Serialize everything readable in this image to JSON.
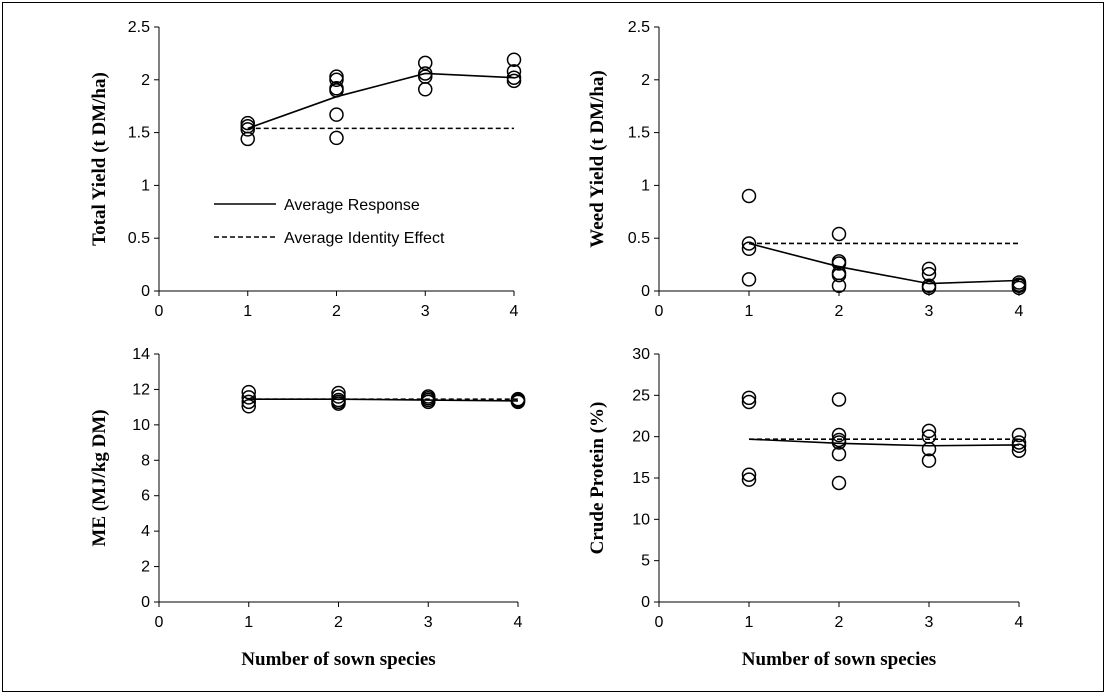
{
  "figure": {
    "legend": {
      "entries": [
        {
          "label": "Average Response",
          "style": "solid"
        },
        {
          "label": "Average Identity Effect",
          "style": "dashed"
        }
      ]
    }
  },
  "chart_data": [
    {
      "type": "scatter",
      "panel": "top-left",
      "ylabel": "Total Yield (t DM/ha)",
      "xlabel": "",
      "xlim": [
        0,
        4
      ],
      "ylim": [
        0,
        2.5
      ],
      "xticks": [
        "0",
        "1",
        "2",
        "3",
        "4"
      ],
      "yticks": [
        "0",
        "0.5",
        "1",
        "1.5",
        "2",
        "2.5"
      ],
      "points": [
        {
          "x": 1,
          "y": 1.44
        },
        {
          "x": 1,
          "y": 1.53
        },
        {
          "x": 1,
          "y": 1.56
        },
        {
          "x": 1,
          "y": 1.59
        },
        {
          "x": 2,
          "y": 1.45
        },
        {
          "x": 2,
          "y": 1.67
        },
        {
          "x": 2,
          "y": 1.9
        },
        {
          "x": 2,
          "y": 1.92
        },
        {
          "x": 2,
          "y": 2.0
        },
        {
          "x": 2,
          "y": 2.03
        },
        {
          "x": 3,
          "y": 1.91
        },
        {
          "x": 3,
          "y": 2.03
        },
        {
          "x": 3,
          "y": 2.06
        },
        {
          "x": 3,
          "y": 2.16
        },
        {
          "x": 4,
          "y": 1.99
        },
        {
          "x": 4,
          "y": 2.02
        },
        {
          "x": 4,
          "y": 2.08
        },
        {
          "x": 4,
          "y": 2.19
        }
      ],
      "series": [
        {
          "name": "Average Response",
          "style": "solid",
          "x": [
            1,
            2,
            3,
            4
          ],
          "y": [
            1.54,
            1.84,
            2.06,
            2.02
          ]
        },
        {
          "name": "Average Identity Effect",
          "style": "dashed",
          "x": [
            1,
            4
          ],
          "y": [
            1.54,
            1.54
          ]
        }
      ],
      "legend": "inside, mid-left"
    },
    {
      "type": "scatter",
      "panel": "top-right",
      "ylabel": "Weed Yield (t DM/ha)",
      "xlabel": "",
      "xlim": [
        0,
        4
      ],
      "ylim": [
        0,
        2.5
      ],
      "xticks": [
        "0",
        "1",
        "2",
        "3",
        "4"
      ],
      "yticks": [
        "0",
        "0.5",
        "1",
        "1.5",
        "2",
        "2.5"
      ],
      "points": [
        {
          "x": 1,
          "y": 0.11
        },
        {
          "x": 1,
          "y": 0.4
        },
        {
          "x": 1,
          "y": 0.45
        },
        {
          "x": 1,
          "y": 0.9
        },
        {
          "x": 2,
          "y": 0.05
        },
        {
          "x": 2,
          "y": 0.15
        },
        {
          "x": 2,
          "y": 0.17
        },
        {
          "x": 2,
          "y": 0.26
        },
        {
          "x": 2,
          "y": 0.28
        },
        {
          "x": 2,
          "y": 0.54
        },
        {
          "x": 3,
          "y": 0.03
        },
        {
          "x": 3,
          "y": 0.05
        },
        {
          "x": 3,
          "y": 0.16
        },
        {
          "x": 3,
          "y": 0.21
        },
        {
          "x": 4,
          "y": 0.03
        },
        {
          "x": 4,
          "y": 0.05
        },
        {
          "x": 4,
          "y": 0.06
        },
        {
          "x": 4,
          "y": 0.08
        }
      ],
      "series": [
        {
          "name": "Average Response",
          "style": "solid",
          "x": [
            1,
            2,
            3,
            4
          ],
          "y": [
            0.45,
            0.23,
            0.07,
            0.1
          ]
        },
        {
          "name": "Average Identity Effect",
          "style": "dashed",
          "x": [
            1,
            4
          ],
          "y": [
            0.45,
            0.45
          ]
        }
      ]
    },
    {
      "type": "scatter",
      "panel": "bottom-left",
      "ylabel": "ME (MJ/kg DM)",
      "xlabel": "Number of sown species",
      "xlim": [
        0,
        4
      ],
      "ylim": [
        0,
        14
      ],
      "xticks": [
        "0",
        "1",
        "2",
        "3",
        "4"
      ],
      "yticks": [
        "0",
        "2",
        "4",
        "6",
        "8",
        "10",
        "12",
        "14"
      ],
      "points": [
        {
          "x": 1,
          "y": 11.05
        },
        {
          "x": 1,
          "y": 11.3
        },
        {
          "x": 1,
          "y": 11.55
        },
        {
          "x": 1,
          "y": 11.85
        },
        {
          "x": 2,
          "y": 11.2
        },
        {
          "x": 2,
          "y": 11.3
        },
        {
          "x": 2,
          "y": 11.4
        },
        {
          "x": 2,
          "y": 11.6
        },
        {
          "x": 2,
          "y": 11.8
        },
        {
          "x": 3,
          "y": 11.3
        },
        {
          "x": 3,
          "y": 11.4
        },
        {
          "x": 3,
          "y": 11.5
        },
        {
          "x": 3,
          "y": 11.6
        },
        {
          "x": 4,
          "y": 11.3
        },
        {
          "x": 4,
          "y": 11.35
        },
        {
          "x": 4,
          "y": 11.4
        },
        {
          "x": 4,
          "y": 11.45
        }
      ],
      "series": [
        {
          "name": "Average Response",
          "style": "solid",
          "x": [
            1,
            2,
            3,
            4
          ],
          "y": [
            11.45,
            11.45,
            11.4,
            11.35
          ]
        },
        {
          "name": "Average Identity Effect",
          "style": "dashed",
          "x": [
            1,
            4
          ],
          "y": [
            11.45,
            11.45
          ]
        }
      ]
    },
    {
      "type": "scatter",
      "panel": "bottom-right",
      "ylabel": "Crude Protein (%)",
      "xlabel": "Number of sown species",
      "xlim": [
        0,
        4
      ],
      "ylim": [
        0,
        30
      ],
      "xticks": [
        "0",
        "1",
        "2",
        "3",
        "4"
      ],
      "yticks": [
        "0",
        "5",
        "10",
        "15",
        "20",
        "25",
        "30"
      ],
      "points": [
        {
          "x": 1,
          "y": 14.8
        },
        {
          "x": 1,
          "y": 15.4
        },
        {
          "x": 1,
          "y": 24.2
        },
        {
          "x": 1,
          "y": 24.7
        },
        {
          "x": 2,
          "y": 14.4
        },
        {
          "x": 2,
          "y": 17.9
        },
        {
          "x": 2,
          "y": 19.3
        },
        {
          "x": 2,
          "y": 19.6
        },
        {
          "x": 2,
          "y": 20.2
        },
        {
          "x": 2,
          "y": 24.5
        },
        {
          "x": 3,
          "y": 17.1
        },
        {
          "x": 3,
          "y": 18.5
        },
        {
          "x": 3,
          "y": 20.0
        },
        {
          "x": 3,
          "y": 20.7
        },
        {
          "x": 4,
          "y": 18.3
        },
        {
          "x": 4,
          "y": 18.9
        },
        {
          "x": 4,
          "y": 19.3
        },
        {
          "x": 4,
          "y": 20.2
        }
      ],
      "series": [
        {
          "name": "Average Response",
          "style": "solid",
          "x": [
            1,
            2,
            3,
            4
          ],
          "y": [
            19.7,
            19.2,
            18.9,
            19.0
          ]
        },
        {
          "name": "Average Identity Effect",
          "style": "dashed",
          "x": [
            1,
            4
          ],
          "y": [
            19.7,
            19.7
          ]
        }
      ]
    }
  ]
}
